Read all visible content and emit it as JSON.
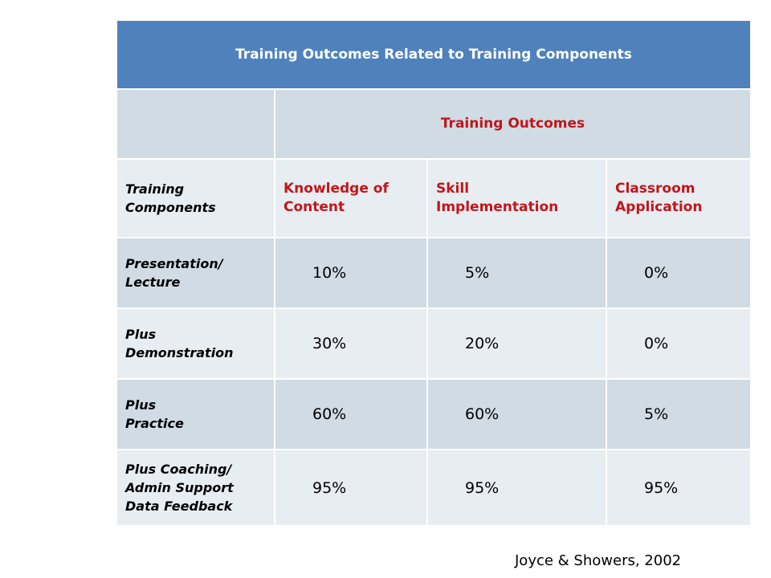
{
  "table": {
    "title": "Training Outcomes Related to Training Components",
    "group_header": "Training Outcomes",
    "columns": [
      "Training\nComponents",
      "Knowledge of\nContent",
      "Skill\nImplementation",
      "Classroom\nApplication"
    ],
    "rows": [
      [
        "Presentation/\nLecture",
        "10%",
        "5%",
        "0%"
      ],
      [
        "Plus\nDemonstration",
        "30%",
        "20%",
        "0%"
      ],
      [
        "Plus\nPractice",
        "60%",
        "60%",
        "5%"
      ],
      [
        "Plus Coaching/\nAdmin Support\nData Feedback",
        "95%",
        "95%",
        "95%"
      ]
    ]
  },
  "citation": "Joyce & Showers, 2002"
}
